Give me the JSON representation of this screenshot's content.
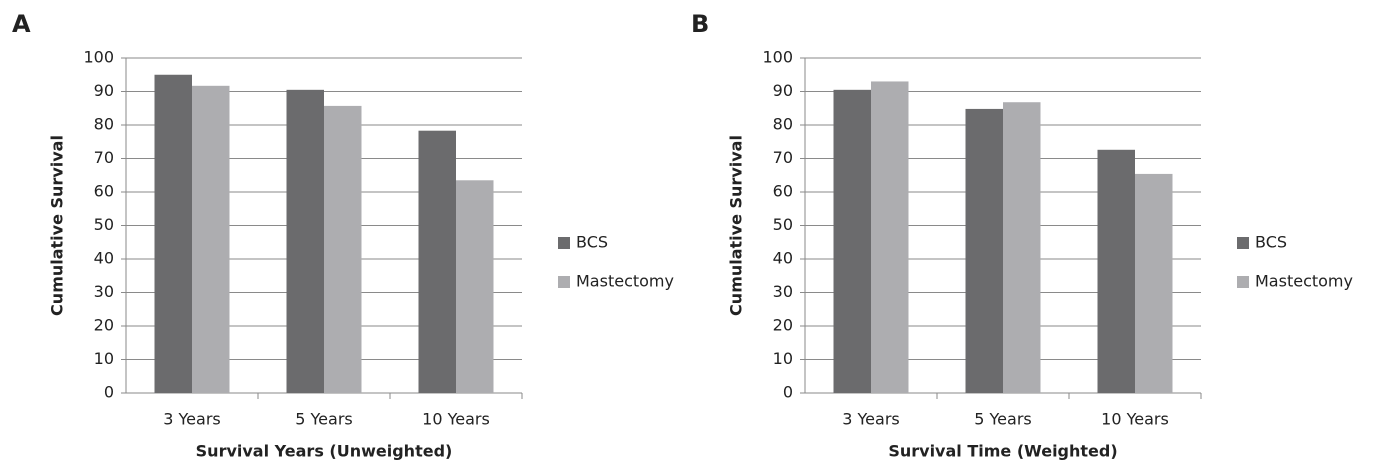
{
  "chart_data": [
    {
      "type": "bar",
      "label": "A",
      "x_label": "Survival Years (Unweighted)",
      "y_label": "Cumulative Survival",
      "categories": [
        "3 Years",
        "5 Years",
        "10 Years"
      ],
      "series": [
        {
          "name": "BCS",
          "color": "#6b6b6d",
          "values": [
            95,
            90.5,
            78.3
          ]
        },
        {
          "name": "Mastectomy",
          "color": "#adadb0",
          "values": [
            91.7,
            85.7,
            63.5
          ]
        }
      ],
      "ylim": [
        0,
        100
      ],
      "yticks": [
        0,
        10,
        20,
        30,
        40,
        50,
        60,
        70,
        80,
        90,
        100
      ],
      "grid": true,
      "legend": "right"
    },
    {
      "type": "bar",
      "label": "B",
      "x_label": "Survival Time (Weighted)",
      "y_label": "Cumulative Survival",
      "categories": [
        "3 Years",
        "5 Years",
        "10 Years"
      ],
      "series": [
        {
          "name": "BCS",
          "color": "#6b6b6d",
          "values": [
            90.5,
            84.8,
            72.6
          ]
        },
        {
          "name": "Mastectomy",
          "color": "#adadb0",
          "values": [
            93,
            86.8,
            65.4
          ]
        }
      ],
      "ylim": [
        0,
        100
      ],
      "yticks": [
        0,
        10,
        20,
        30,
        40,
        50,
        60,
        70,
        80,
        90,
        100
      ],
      "grid": true,
      "legend": "right"
    }
  ]
}
